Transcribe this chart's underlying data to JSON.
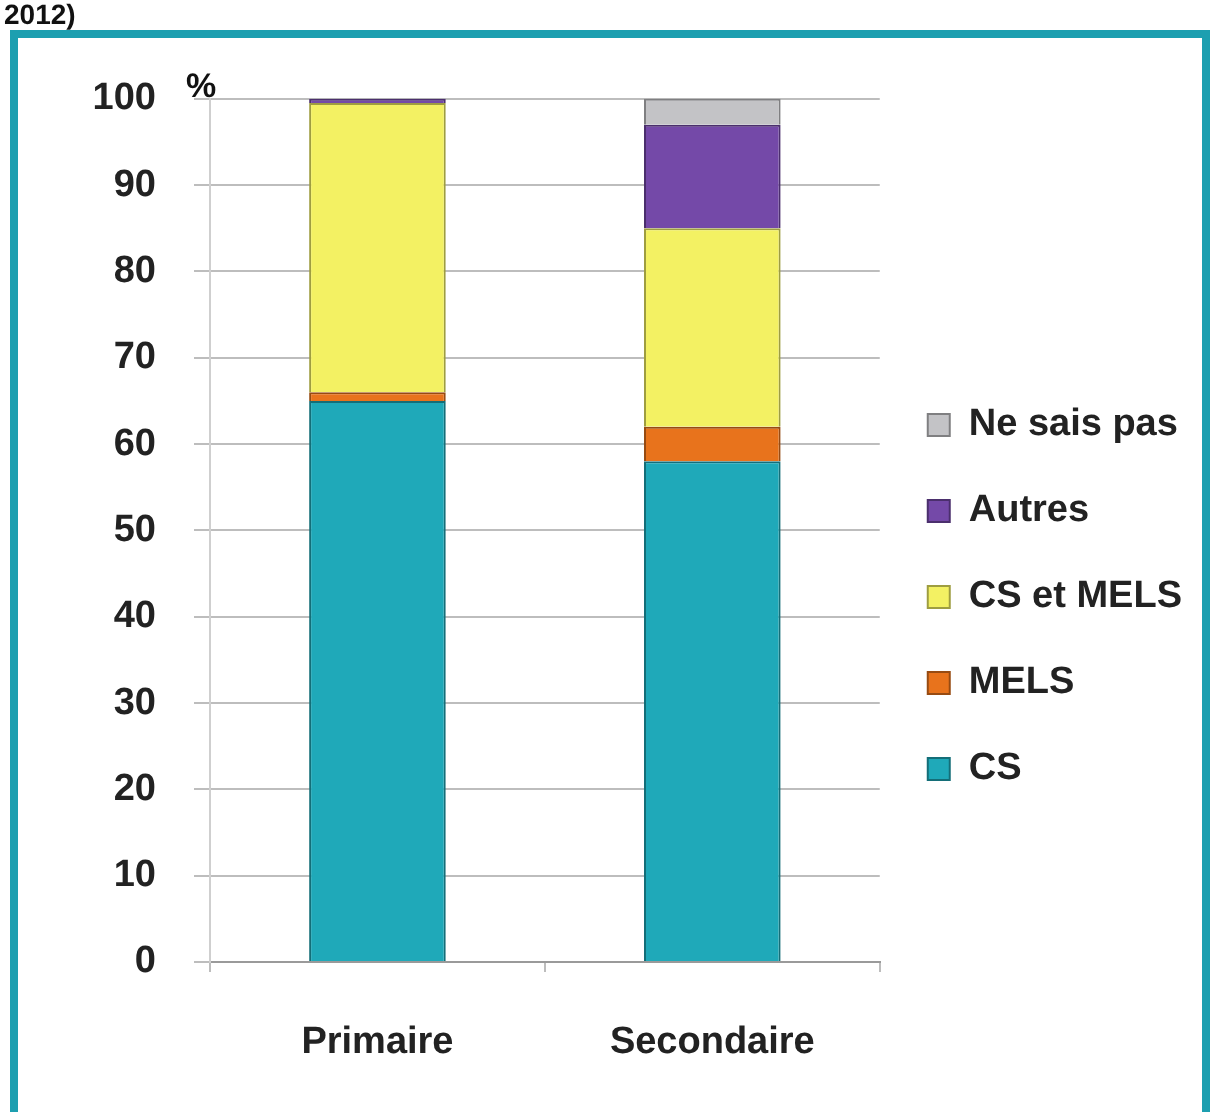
{
  "chart_data": {
    "type": "bar",
    "stacked": true,
    "annotations": [
      "2012)"
    ],
    "ylabel": "%",
    "categories": [
      "Primaire",
      "Secondaire"
    ],
    "series": [
      {
        "name": "CS",
        "color": "#1fa9b9",
        "values": [
          65,
          58
        ]
      },
      {
        "name": "MELS",
        "color": "#e8731c",
        "values": [
          1,
          4
        ]
      },
      {
        "name": "CS et MELS",
        "color": "#f3f163",
        "values": [
          33.5,
          23
        ]
      },
      {
        "name": "Autres",
        "color": "#7449a8",
        "values": [
          0.5,
          12
        ]
      },
      {
        "name": "Ne sais pas",
        "color": "#c3c3c6",
        "values": [
          0,
          3
        ]
      }
    ],
    "ylim": [
      0,
      100
    ],
    "yticks": [
      0,
      10,
      20,
      30,
      40,
      50,
      60,
      70,
      80,
      90,
      100
    ],
    "grid": "y",
    "legend": "right"
  }
}
